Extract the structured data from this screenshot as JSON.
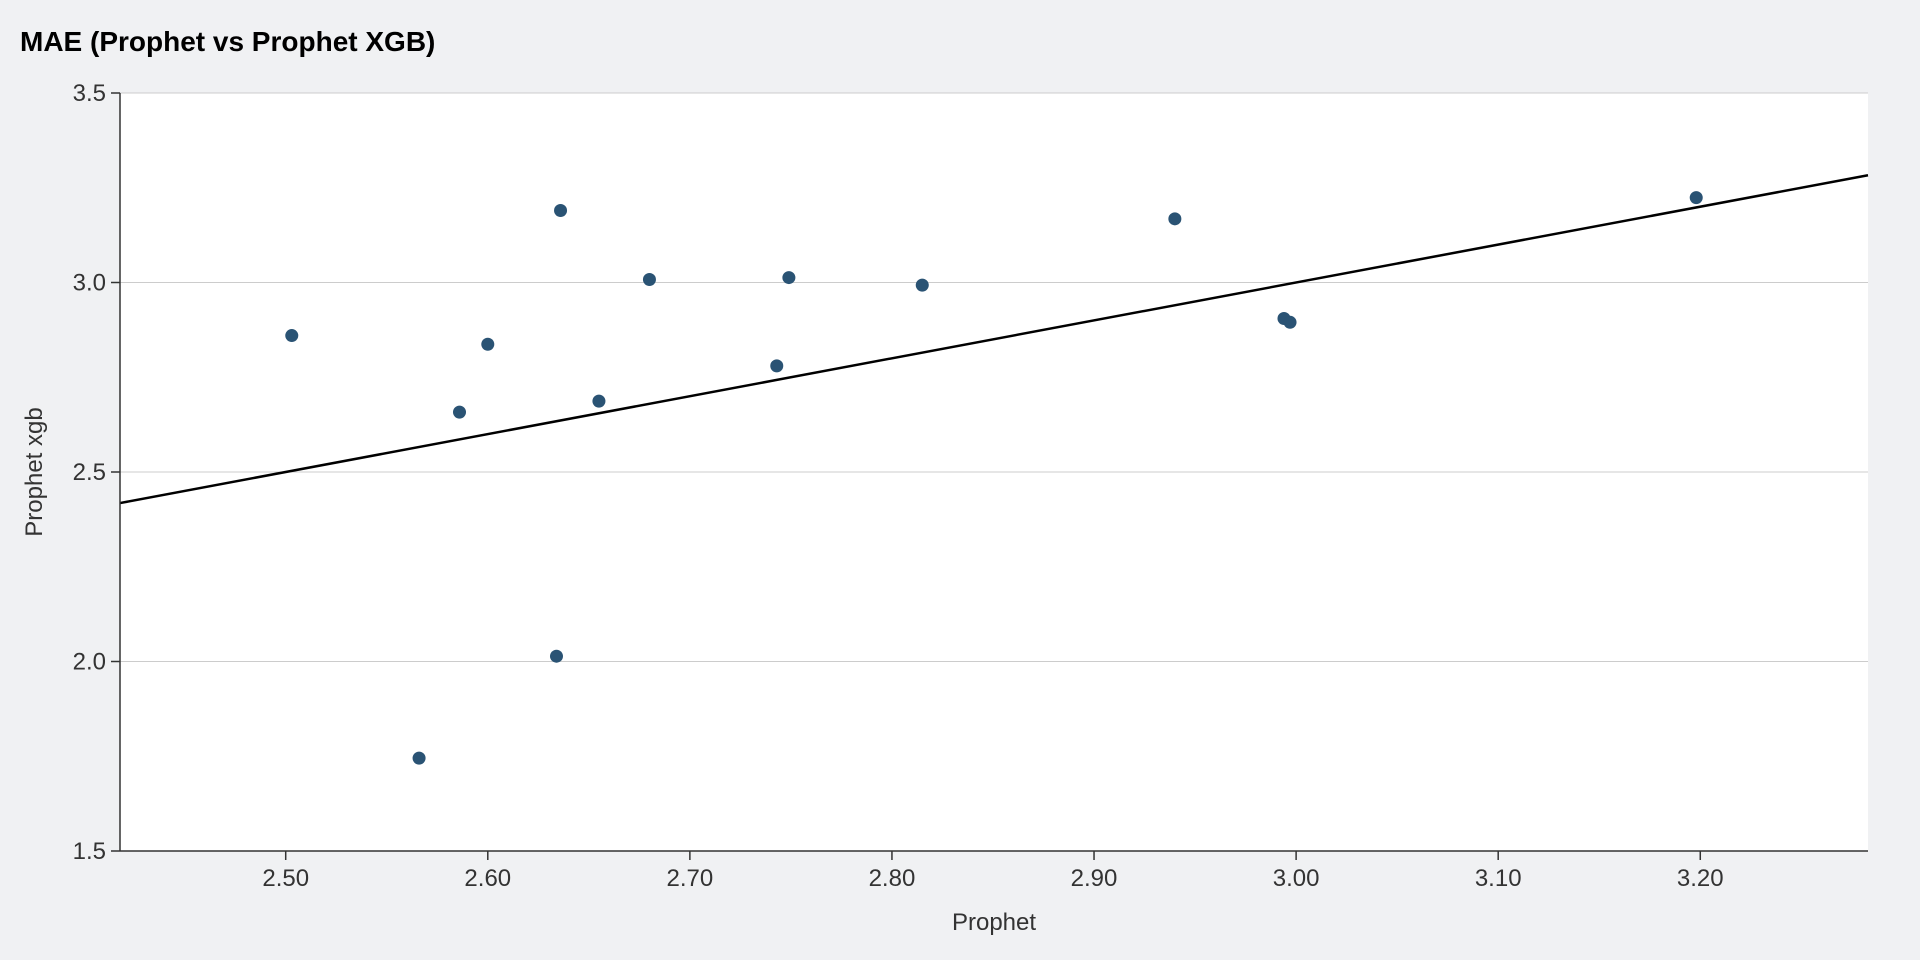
{
  "chart_data": {
    "type": "scatter",
    "title": "MAE (Prophet vs Prophet XGB)",
    "xlabel": "Prophet",
    "ylabel": "Prophet xgb",
    "xlim": [
      2.418,
      3.283
    ],
    "ylim": [
      1.5,
      3.5
    ],
    "xticks": [
      "2.50",
      "2.60",
      "2.70",
      "2.80",
      "2.90",
      "3.00",
      "3.10",
      "3.20"
    ],
    "yticks": [
      "1.5",
      "2.0",
      "2.5",
      "3.0",
      "3.5"
    ],
    "grid": "horizontal",
    "reference_line": "y = x",
    "points": [
      {
        "x": 2.503,
        "y": 2.86
      },
      {
        "x": 2.566,
        "y": 1.745
      },
      {
        "x": 2.586,
        "y": 2.658
      },
      {
        "x": 2.6,
        "y": 2.837
      },
      {
        "x": 2.634,
        "y": 2.014
      },
      {
        "x": 2.636,
        "y": 3.19
      },
      {
        "x": 2.655,
        "y": 2.687
      },
      {
        "x": 2.68,
        "y": 3.008
      },
      {
        "x": 2.743,
        "y": 2.78
      },
      {
        "x": 2.749,
        "y": 3.013
      },
      {
        "x": 2.815,
        "y": 2.993
      },
      {
        "x": 2.94,
        "y": 3.168
      },
      {
        "x": 2.994,
        "y": 2.905
      },
      {
        "x": 2.997,
        "y": 2.895
      },
      {
        "x": 3.198,
        "y": 3.224
      }
    ]
  },
  "colors": {
    "marker": "#2a5374",
    "line": "#000000",
    "grid": "#cccccc",
    "axis": "#333333",
    "plot_background": "#ffffff"
  }
}
